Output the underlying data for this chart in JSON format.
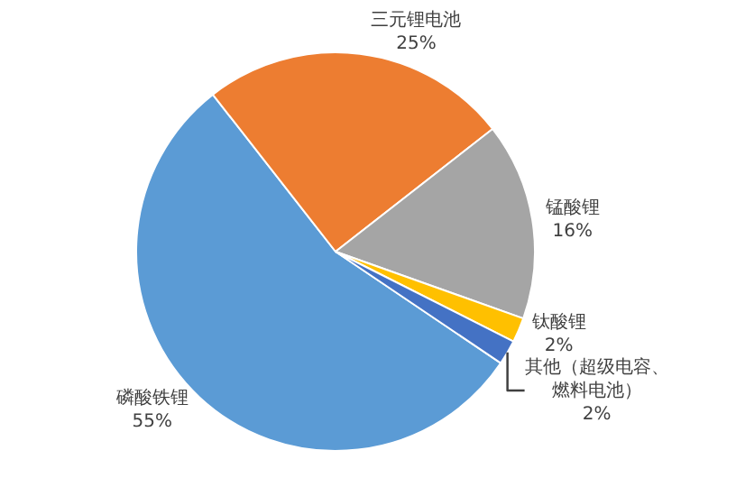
{
  "chart_data": {
    "type": "pie",
    "categories": [
      "磷酸铁锂",
      "三元锂电池",
      "锰酸锂",
      "钛酸锂",
      "其他（超级电容、燃料电池）"
    ],
    "values": [
      55,
      25,
      16,
      2,
      2
    ],
    "colors": [
      "#5b9bd5",
      "#ed7d31",
      "#a5a5a5",
      "#ffc000",
      "#4472c4"
    ],
    "value_labels": [
      "55%",
      "25%",
      "16%",
      "2%",
      "2%"
    ],
    "legend": false
  }
}
